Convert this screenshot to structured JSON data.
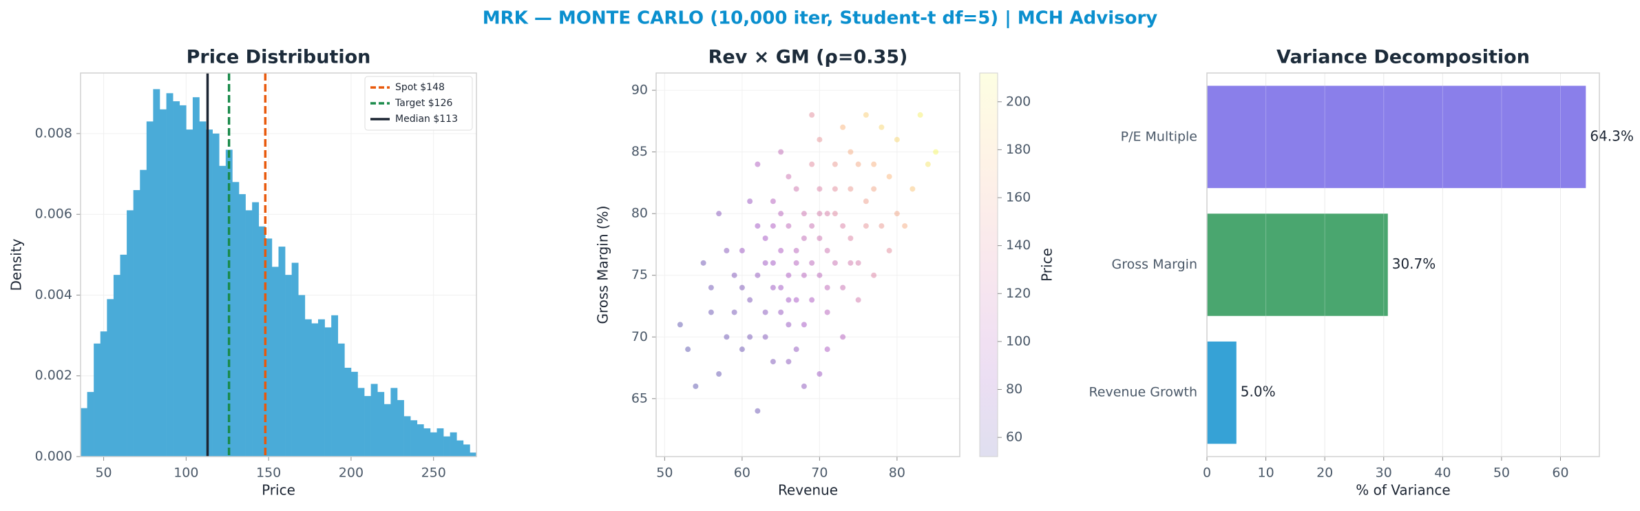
{
  "title": "MRK — MONTE CARLO (10,000 iter, Student-t df=5) | MCH Advisory",
  "chart_data": [
    {
      "type": "histogram",
      "title": "Price Distribution",
      "xlabel": "Price",
      "ylabel": "Density",
      "bins": [
        36,
        40,
        44,
        48,
        52,
        56,
        60,
        64,
        68,
        72,
        76,
        80,
        84,
        88,
        92,
        96,
        100,
        104,
        108,
        112,
        116,
        120,
        124,
        128,
        132,
        136,
        140,
        144,
        148,
        152,
        156,
        160,
        164,
        168,
        172,
        176,
        180,
        184,
        188,
        192,
        196,
        200,
        204,
        208,
        212,
        216,
        220,
        224,
        228,
        232,
        236,
        240,
        244,
        248,
        252,
        256,
        260,
        264,
        268,
        272,
        276
      ],
      "values": [
        0.0012,
        0.0016,
        0.0028,
        0.0031,
        0.0039,
        0.0045,
        0.005,
        0.0061,
        0.0066,
        0.0071,
        0.0083,
        0.0091,
        0.0086,
        0.009,
        0.0088,
        0.0087,
        0.0081,
        0.0089,
        0.0083,
        0.0081,
        0.008,
        0.0072,
        0.0076,
        0.0068,
        0.0065,
        0.0061,
        0.0063,
        0.0057,
        0.0054,
        0.0047,
        0.0052,
        0.0045,
        0.0048,
        0.004,
        0.0034,
        0.0033,
        0.0034,
        0.0032,
        0.0035,
        0.0028,
        0.0022,
        0.0021,
        0.0017,
        0.0015,
        0.0018,
        0.0016,
        0.0013,
        0.0017,
        0.0014,
        0.001,
        0.0009,
        0.0008,
        0.0007,
        0.0006,
        0.0007,
        0.0005,
        0.0006,
        0.0004,
        0.0003,
        0.0001
      ],
      "color": "#4aabd8",
      "xlim": [
        36,
        276
      ],
      "ylim": [
        0,
        0.0095
      ],
      "xticks": [
        50,
        100,
        150,
        200,
        250
      ],
      "yticks": [
        {
          "value": 0,
          "label": "0.000"
        },
        {
          "value": 0.002,
          "label": "0.002"
        },
        {
          "value": 0.004,
          "label": "0.004"
        },
        {
          "value": 0.006,
          "label": "0.006"
        },
        {
          "value": 0.008,
          "label": "0.008"
        }
      ],
      "grid": true,
      "legend": "upper right",
      "vlines": [
        {
          "name": "Spot $148",
          "value": 148,
          "color": "#e8590c",
          "dashed": true
        },
        {
          "name": "Target $126",
          "value": 126,
          "color": "#1a8a4a",
          "dashed": true
        },
        {
          "name": "Median $113",
          "value": 113,
          "color": "#1c2533",
          "dashed": false
        }
      ]
    },
    {
      "type": "scatter",
      "title": "Rev × GM (ρ=0.35)",
      "xlabel": "Revenue",
      "ylabel": "Gross Margin (%)",
      "x": [
        67,
        65,
        70,
        63,
        72,
        68,
        60,
        74,
        66,
        69,
        62,
        71,
        64,
        75,
        58,
        77,
        66,
        70,
        61,
        73,
        65,
        68,
        56,
        78,
        67,
        72,
        63,
        69,
        76,
        59,
        64,
        71,
        80,
        66,
        57,
        74,
        62,
        68,
        70,
        65,
        82,
        60,
        73,
        67,
        55,
        79,
        64,
        71,
        69,
        61,
        75,
        58,
        76,
        66,
        63,
        72,
        84,
        52,
        70,
        68,
        74,
        62,
        77,
        65,
        59,
        81,
        67,
        73,
        54,
        78,
        69,
        64,
        71,
        57,
        75,
        66,
        83,
        60,
        70,
        72,
        63,
        85,
        68,
        76,
        61,
        73,
        65,
        79,
        67,
        56,
        74,
        62,
        69,
        80,
        66,
        71,
        53,
        77,
        64,
        70
      ],
      "y": [
        76,
        74,
        78,
        72,
        80,
        75,
        77,
        82,
        79,
        73,
        75,
        77,
        81,
        76,
        70,
        84,
        71,
        82,
        73,
        74,
        77,
        80,
        74,
        79,
        69,
        84,
        78,
        76,
        81,
        72,
        76,
        72,
        86,
        83,
        67,
        78,
        79,
        71,
        86,
        72,
        82,
        69,
        87,
        73,
        76,
        77,
        68,
        80,
        84,
        81,
        73,
        77,
        88,
        75,
        70,
        76,
        84,
        71,
        67,
        78,
        85,
        84,
        75,
        80,
        75,
        79,
        82,
        70,
        66,
        87,
        79,
        74,
        74,
        80,
        84,
        68,
        88,
        74,
        75,
        82,
        76,
        85,
        66,
        79,
        70,
        79,
        85,
        83,
        77,
        72,
        76,
        64,
        88,
        80,
        73,
        69,
        69,
        82,
        79,
        80
      ],
      "color_values": [
        100,
        88,
        118,
        75,
        135,
        102,
        85,
        150,
        108,
        95,
        80,
        118,
        100,
        125,
        62,
        168,
        82,
        130,
        70,
        115,
        96,
        118,
        64,
        150,
        80,
        150,
        90,
        106,
        155,
        66,
        88,
        102,
        190,
        118,
        58,
        132,
        88,
        90,
        145,
        82,
        180,
        62,
        170,
        92,
        63,
        140,
        70,
        128,
        138,
        84,
        122,
        74,
        185,
        95,
        72,
        115,
        200,
        56,
        85,
        110,
        165,
        98,
        132,
        104,
        72,
        165,
        120,
        100,
        55,
        190,
        115,
        85,
        108,
        75,
        162,
        76,
        205,
        70,
        105,
        140,
        86,
        210,
        78,
        145,
        66,
        130,
        110,
        172,
        104,
        60,
        122,
        60,
        140,
        160,
        88,
        95,
        55,
        160,
        96,
        125
      ],
      "cmap": "plasma",
      "alpha": 0.35,
      "clim": [
        52,
        212
      ],
      "cticks": [
        60,
        80,
        100,
        120,
        140,
        160,
        180,
        200
      ],
      "clabel": "Price",
      "xlim": [
        48.9,
        88.1
      ],
      "ylim": [
        60.3,
        91.4
      ],
      "xticks": [
        50,
        60,
        70,
        80
      ],
      "yticks": [
        65,
        70,
        75,
        80,
        85,
        90
      ],
      "grid": true
    },
    {
      "type": "hbar",
      "title": "Variance Decomposition",
      "xlabel": "% of Variance",
      "categories": [
        "P/E Multiple",
        "Gross Margin",
        "Revenue Growth"
      ],
      "values": [
        64.3,
        30.7,
        5.0
      ],
      "value_labels": [
        "64.3%",
        "30.7%",
        "5.0%"
      ],
      "colors": [
        "#8a7fea",
        "#4aa66f",
        "#36a2d6"
      ],
      "xlim": [
        0,
        66.6
      ],
      "xticks": [
        0,
        10,
        20,
        30,
        40,
        50,
        60
      ],
      "grid": true
    }
  ]
}
